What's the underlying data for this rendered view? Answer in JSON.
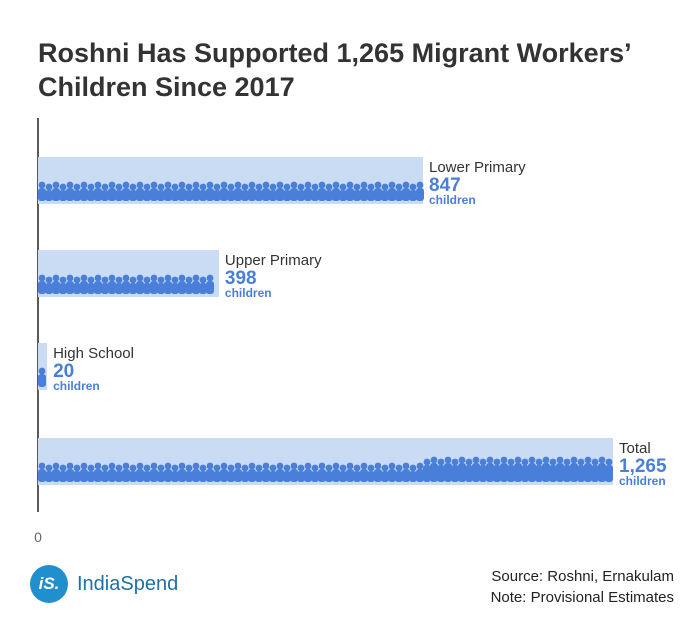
{
  "title": "Roshni Has Supported 1,265 Migrant Workers’\nChildren Since 2017",
  "chart_data": {
    "type": "bar",
    "orientation": "horizontal",
    "title": "Roshni Has Supported 1,265 Migrant Workers’ Children Since 2017",
    "categories": [
      "Lower Primary",
      "Upper Primary",
      "High School",
      "Total"
    ],
    "values": [
      847,
      398,
      20,
      1265
    ],
    "value_labels": [
      "847",
      "398",
      "20",
      "1,265"
    ],
    "unit_label": "children",
    "xlim": [
      0,
      1265
    ],
    "x_tick_labels": [
      "0"
    ],
    "xlabel": "",
    "ylabel": "",
    "grid": false,
    "colors": {
      "bar_background": "#cadcf3",
      "person_icon": "#4a7fd9",
      "value_text": "#4a7fd9",
      "label_text": "#333333"
    }
  },
  "logo": {
    "badge": "iS.",
    "name": "IndiaSpend",
    "color": "#1f8fce"
  },
  "source": {
    "line1": "Source: Roshni, Ernakulam",
    "line2": "Note: Provisional Estimates"
  }
}
